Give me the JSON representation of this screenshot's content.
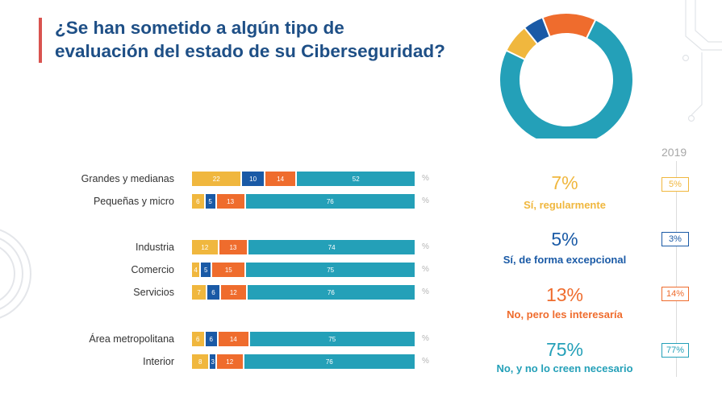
{
  "title": {
    "line1": "¿Se han sometido a algún tipo de",
    "line2": "evaluación del estado de su Ciberseguridad?"
  },
  "colors": {
    "title": "#1e4f86",
    "accent": "#d9534f",
    "yellow": "#f0b73e",
    "darkblue": "#1a5aa6",
    "orange": "#ef6c2d",
    "teal": "#24a0b8"
  },
  "pct_symbol": "%",
  "chart_data": [
    {
      "type": "bar",
      "stacked": true,
      "orientation": "horizontal",
      "categories": [
        "Grandes y medianas",
        "Pequeñas y micro",
        "Industria",
        "Comercio",
        "Servicios",
        "Área metropolitana",
        "Interior"
      ],
      "series": [
        {
          "name": "Sí, regularmente",
          "color": "#f0b73e",
          "values": [
            22,
            6,
            12,
            4,
            7,
            6,
            8
          ]
        },
        {
          "name": "Sí, de forma excepcional",
          "color": "#1a5aa6",
          "values": [
            10,
            5,
            0,
            5,
            6,
            6,
            3
          ]
        },
        {
          "name": "No, pero les interesaría",
          "color": "#ef6c2d",
          "values": [
            14,
            13,
            13,
            15,
            12,
            14,
            12
          ]
        },
        {
          "name": "No, y no lo creen necesario",
          "color": "#24a0b8",
          "values": [
            52,
            76,
            74,
            75,
            76,
            75,
            76
          ]
        }
      ],
      "unit": "%"
    },
    {
      "type": "pie",
      "donut": true,
      "labels": [
        "Sí, regularmente",
        "Sí, de forma excepcional",
        "No, pero les interesaría",
        "No, y no lo creen necesario"
      ],
      "values": [
        7,
        5,
        13,
        75
      ],
      "colors": [
        "#f0b73e",
        "#1a5aa6",
        "#ef6c2d",
        "#24a0b8"
      ]
    }
  ],
  "legend": [
    {
      "value": "7%",
      "label": "Sí, regularmente",
      "prev": "5%",
      "color": "#f0b73e"
    },
    {
      "value": "5%",
      "label": "Sí, de forma excepcional",
      "prev": "3%",
      "color": "#1a5aa6"
    },
    {
      "value": "13%",
      "label": "No, pero les interesaría",
      "prev": "14%",
      "color": "#ef6c2d"
    },
    {
      "value": "75%",
      "label": "No, y no lo creen necesario",
      "prev": "77%",
      "color": "#24a0b8"
    }
  ],
  "year_label": "2019"
}
